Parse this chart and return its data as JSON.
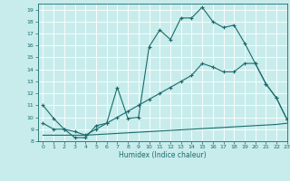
{
  "xlabel": "Humidex (Indice chaleur)",
  "xlim": [
    -0.5,
    23
  ],
  "ylim": [
    8,
    19.5
  ],
  "yticks": [
    8,
    9,
    10,
    11,
    12,
    13,
    14,
    15,
    16,
    17,
    18,
    19
  ],
  "xticks": [
    0,
    1,
    2,
    3,
    4,
    5,
    6,
    7,
    8,
    9,
    10,
    11,
    12,
    13,
    14,
    15,
    16,
    17,
    18,
    19,
    20,
    21,
    22,
    23
  ],
  "bg_color": "#c8ecec",
  "line_color": "#1a6b6b",
  "grid_color": "#ffffff",
  "line1_x": [
    0,
    1,
    2,
    3,
    4,
    5,
    6,
    7,
    8,
    9,
    10,
    11,
    12,
    13,
    14,
    15,
    16,
    17,
    18,
    19,
    20,
    21,
    22,
    23
  ],
  "line1_y": [
    11.0,
    9.9,
    9.0,
    8.3,
    8.3,
    9.3,
    9.5,
    12.5,
    9.9,
    10.0,
    15.9,
    17.3,
    16.5,
    18.3,
    18.3,
    19.2,
    18.0,
    17.5,
    17.7,
    16.2,
    14.5,
    12.8,
    11.6,
    9.8
  ],
  "line2_x": [
    0,
    1,
    2,
    3,
    4,
    5,
    6,
    7,
    8,
    9,
    10,
    11,
    12,
    13,
    14,
    15,
    16,
    17,
    18,
    19,
    20,
    21,
    22,
    23
  ],
  "line2_y": [
    9.5,
    9.0,
    9.0,
    8.8,
    8.5,
    9.0,
    9.5,
    10.0,
    10.5,
    11.0,
    11.5,
    12.0,
    12.5,
    13.0,
    13.5,
    14.5,
    14.2,
    13.8,
    13.8,
    14.5,
    14.5,
    12.8,
    11.6,
    9.8
  ],
  "line3_x": [
    0,
    1,
    2,
    3,
    4,
    5,
    6,
    7,
    8,
    9,
    10,
    11,
    12,
    13,
    14,
    15,
    16,
    17,
    18,
    19,
    20,
    21,
    22,
    23
  ],
  "line3_y": [
    8.5,
    8.5,
    8.5,
    8.5,
    8.5,
    8.55,
    8.6,
    8.65,
    8.7,
    8.75,
    8.8,
    8.85,
    8.9,
    8.95,
    9.0,
    9.05,
    9.1,
    9.15,
    9.2,
    9.25,
    9.3,
    9.35,
    9.4,
    9.5
  ]
}
